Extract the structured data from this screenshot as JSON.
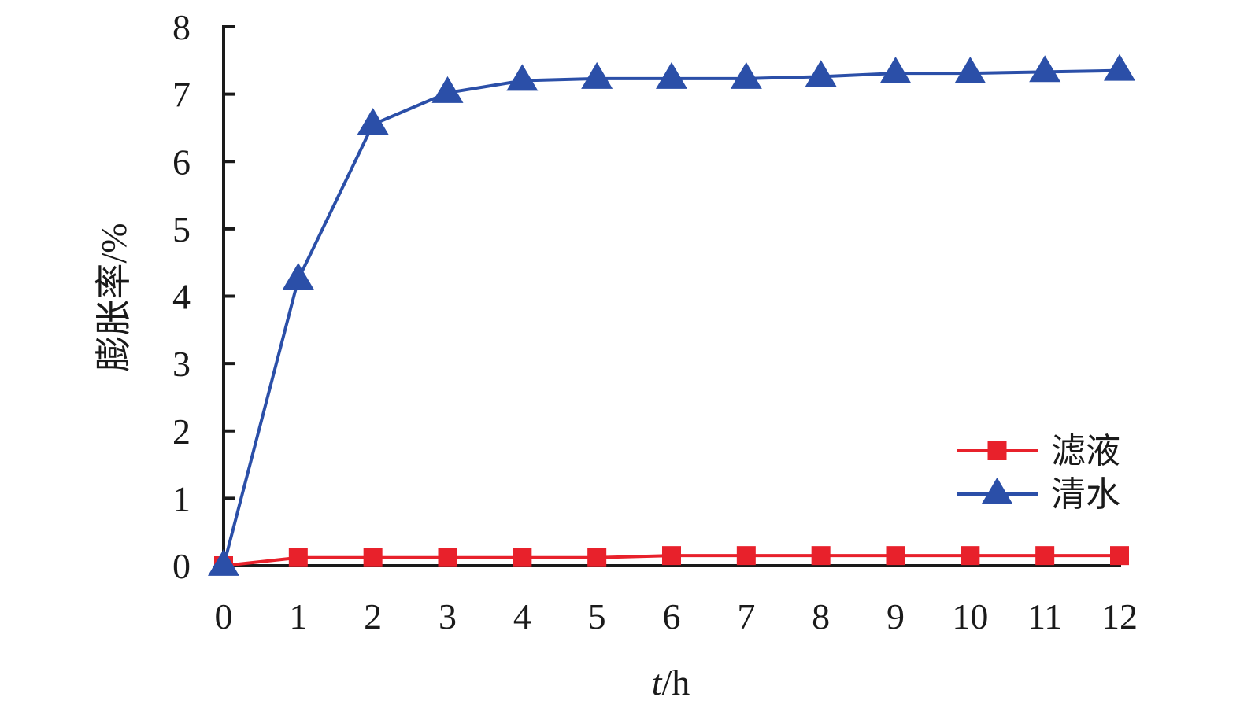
{
  "chart_data": {
    "type": "line",
    "x": [
      0,
      1,
      2,
      3,
      4,
      5,
      6,
      7,
      8,
      9,
      10,
      11,
      12
    ],
    "xticks": [
      "0",
      "1",
      "2",
      "3",
      "4",
      "5",
      "6",
      "7",
      "8",
      "9",
      "10",
      "11",
      "12"
    ],
    "yticks": [
      "0",
      "1",
      "2",
      "3",
      "4",
      "5",
      "6",
      "7",
      "8"
    ],
    "xlim": [
      0,
      12
    ],
    "ylim": [
      0,
      8
    ],
    "xlabel": "t/h",
    "xlabel_italic_part": "t",
    "xlabel_rest": "/h",
    "ylabel": "膨胀率/%",
    "grid": false,
    "legend_position": "bottom-right",
    "series": [
      {
        "name": "滤液",
        "color": "#e8212b",
        "marker": "square",
        "values": [
          0,
          0.12,
          0.12,
          0.12,
          0.12,
          0.12,
          0.15,
          0.15,
          0.15,
          0.15,
          0.15,
          0.15,
          0.15
        ]
      },
      {
        "name": "清水",
        "color": "#2b4fa8",
        "marker": "triangle",
        "values": [
          0,
          4.25,
          6.55,
          7.02,
          7.2,
          7.23,
          7.23,
          7.23,
          7.26,
          7.31,
          7.31,
          7.33,
          7.35
        ]
      }
    ]
  }
}
